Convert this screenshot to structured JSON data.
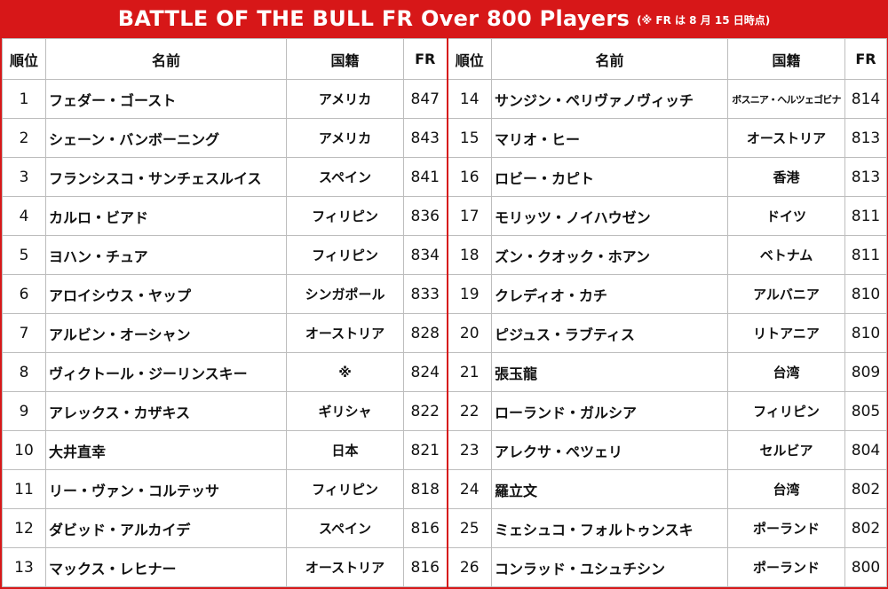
{
  "header": {
    "title": "BATTLE OF THE BULL FR Over 800 Players",
    "note": "(※ FR は 8 月 15 日時点)"
  },
  "columns": [
    "順位",
    "名前",
    "国籍",
    "FR"
  ],
  "left_rows": [
    {
      "rank": "1",
      "name": "フェダー・ゴースト",
      "country": "アメリカ",
      "fr": "847"
    },
    {
      "rank": "2",
      "name": "シェーン・バンボーニング",
      "country": "アメリカ",
      "fr": "843"
    },
    {
      "rank": "3",
      "name": "フランシスコ・サンチェスルイス",
      "country": "スペイン",
      "fr": "841"
    },
    {
      "rank": "4",
      "name": "カルロ・ビアド",
      "country": "フィリピン",
      "fr": "836"
    },
    {
      "rank": "5",
      "name": "ヨハン・チュア",
      "country": "フィリピン",
      "fr": "834"
    },
    {
      "rank": "6",
      "name": "アロイシウス・ヤップ",
      "country": "シンガポール",
      "fr": "833"
    },
    {
      "rank": "7",
      "name": "アルビン・オーシャン",
      "country": "オーストリア",
      "fr": "828"
    },
    {
      "rank": "8",
      "name": "ヴィクトール・ジーリンスキー",
      "country": "※",
      "fr": "824"
    },
    {
      "rank": "9",
      "name": "アレックス・カザキス",
      "country": "ギリシャ",
      "fr": "822"
    },
    {
      "rank": "10",
      "name": "大井直幸",
      "country": "日本",
      "fr": "821"
    },
    {
      "rank": "11",
      "name": "リー・ヴァン・コルテッサ",
      "country": "フィリピン",
      "fr": "818"
    },
    {
      "rank": "12",
      "name": "ダビッド・アルカイデ",
      "country": "スペイン",
      "fr": "816"
    },
    {
      "rank": "13",
      "name": "マックス・レヒナー",
      "country": "オーストリア",
      "fr": "816"
    }
  ],
  "right_rows": [
    {
      "rank": "14",
      "name": "サンジン・ペリヴァノヴィッチ",
      "country": "ボスニア・ヘルツェゴビナ",
      "fr": "814"
    },
    {
      "rank": "15",
      "name": "マリオ・ヒー",
      "country": "オーストリア",
      "fr": "813"
    },
    {
      "rank": "16",
      "name": "ロビー・カピト",
      "country": "香港",
      "fr": "813"
    },
    {
      "rank": "17",
      "name": "モリッツ・ノイハウゼン",
      "country": "ドイツ",
      "fr": "811"
    },
    {
      "rank": "18",
      "name": "ズン・クオック・ホアン",
      "country": "ベトナム",
      "fr": "811"
    },
    {
      "rank": "19",
      "name": "クレディオ・カチ",
      "country": "アルバニア",
      "fr": "810"
    },
    {
      "rank": "20",
      "name": "ピジュス・ラブティス",
      "country": "リトアニア",
      "fr": "810"
    },
    {
      "rank": "21",
      "name": "張玉龍",
      "country": "台湾",
      "fr": "809"
    },
    {
      "rank": "22",
      "name": "ローランド・ガルシア",
      "country": "フィリピン",
      "fr": "805"
    },
    {
      "rank": "23",
      "name": "アレクサ・ペツェリ",
      "country": "セルビア",
      "fr": "804"
    },
    {
      "rank": "24",
      "name": "羅立文",
      "country": "台湾",
      "fr": "802"
    },
    {
      "rank": "25",
      "name": "ミェシュコ・フォルトゥンスキ",
      "country": "ポーランド",
      "fr": "802"
    },
    {
      "rank": "26",
      "name": "コンラッド・ユシュチシン",
      "country": "ポーランド",
      "fr": "800"
    }
  ],
  "colors": {
    "accent": "#d71718",
    "grid": "#bdbdbd"
  }
}
